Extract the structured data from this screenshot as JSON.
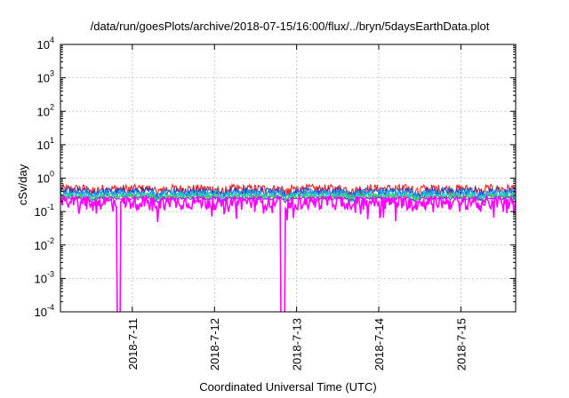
{
  "chart_data": {
    "type": "line",
    "title": "/data/run/goesPlots/archive/2018-07-15/16:00/flux/../bryn/5daysEarthData.plot",
    "xlabel": "Coordinated Universal Time (UTC)",
    "ylabel": "cSv/day",
    "yscale": "log",
    "ylim": [
      0.0001,
      10000
    ],
    "yticks": [
      {
        "value": 0.0001,
        "base": "10",
        "exp": "-4"
      },
      {
        "value": 0.001,
        "base": "10",
        "exp": "-3"
      },
      {
        "value": 0.01,
        "base": "10",
        "exp": "-2"
      },
      {
        "value": 0.1,
        "base": "10",
        "exp": "-1"
      },
      {
        "value": 1,
        "base": "10",
        "exp": "0"
      },
      {
        "value": 10,
        "base": "10",
        "exp": "1"
      },
      {
        "value": 100,
        "base": "10",
        "exp": "2"
      },
      {
        "value": 1000,
        "base": "10",
        "exp": "3"
      },
      {
        "value": 10000,
        "base": "10",
        "exp": "4"
      }
    ],
    "xlim": [
      "2018-07-10T03:00",
      "2018-07-15T16:00"
    ],
    "xticks": [
      "2018-7-11",
      "2018-7-12",
      "2018-7-13",
      "2018-7-14",
      "2018-7-15"
    ],
    "grid": true,
    "series": [
      {
        "color": "#e8231f",
        "level": 0.48,
        "amp": 0.35
      },
      {
        "color": "#1f3fd6",
        "level": 0.4,
        "amp": 0.3
      },
      {
        "color": "#1a9edc",
        "level": 0.36,
        "amp": 0.26
      },
      {
        "color": "#20d0c8",
        "level": 0.31,
        "amp": 0.2
      },
      {
        "color": "#3cc84a",
        "level": 0.28,
        "amp": 0.12
      },
      {
        "color": "#8a2be2",
        "level": 0.25,
        "amp": 0.1
      },
      {
        "color": "#ff00ff",
        "level": 0.2,
        "amp": 0.45
      }
    ],
    "dropouts": [
      {
        "date": "2018-07-10T20:00",
        "series": "#ff00ff"
      },
      {
        "date": "2018-07-12T20:00",
        "series": "#ff00ff"
      }
    ]
  }
}
